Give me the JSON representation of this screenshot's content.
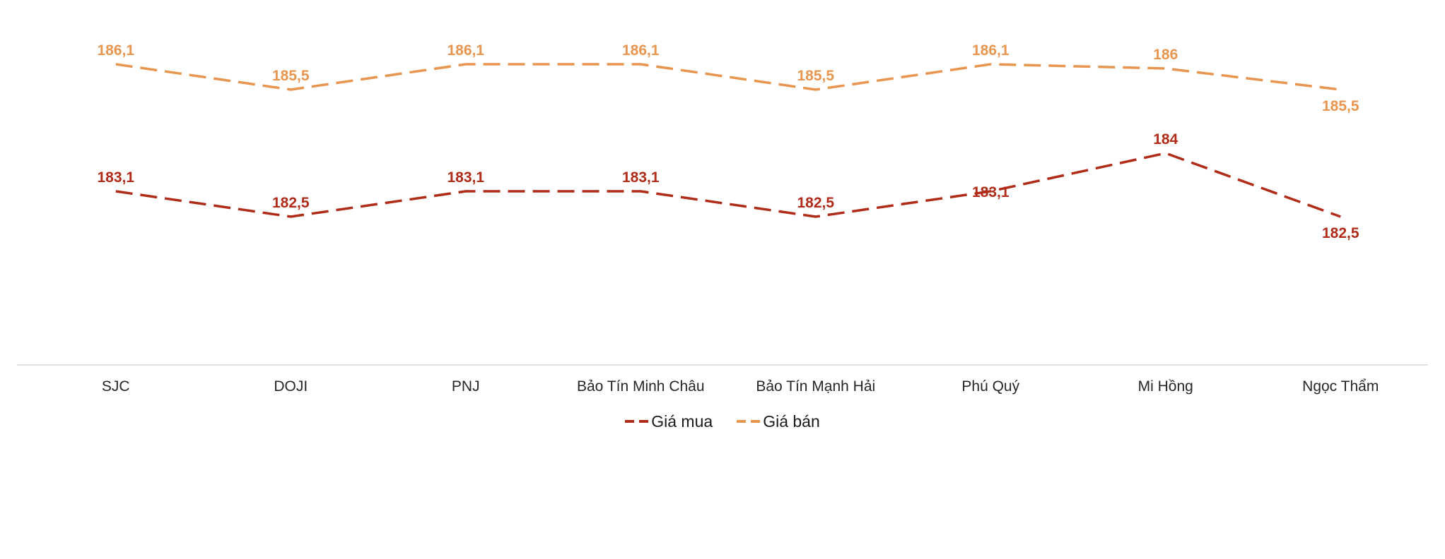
{
  "colors": {
    "background": "#FFFFFF",
    "buy_series": "#B02B18",
    "sell_series": "#E8954F",
    "axis_line": "#D9D9D9",
    "category_text": "#262626",
    "legend_text": "#1A1A1A"
  },
  "chart_data": {
    "type": "line",
    "categories": [
      "SJC",
      "DOJI",
      "PNJ",
      "Bảo Tín Minh Châu",
      "Bảo Tín Mạnh Hải",
      "Phú Quý",
      "Mi Hồng",
      "Ngọc Thẩm"
    ],
    "series": [
      {
        "name": "Giá mua",
        "color": "#B02B18",
        "values": [
          183.1,
          182.5,
          183.1,
          183.1,
          182.5,
          183.1,
          184,
          182.5
        ],
        "labels": [
          "183,1",
          "182,5",
          "183,1",
          "183,1",
          "182,5",
          "183,1",
          "184",
          "182,5"
        ],
        "label_pos": [
          "above",
          "above",
          "above",
          "above",
          "above",
          "center",
          "above",
          "below"
        ]
      },
      {
        "name": "Giá bán",
        "color": "#E8954F",
        "values": [
          186.1,
          185.5,
          186.1,
          186.1,
          185.5,
          186.1,
          186,
          185.5
        ],
        "labels": [
          "186,1",
          "185,5",
          "186,1",
          "186,1",
          "185,5",
          "186,1",
          "186",
          "185,5"
        ],
        "label_pos": [
          "above",
          "above",
          "above",
          "above",
          "above",
          "above",
          "above",
          "below"
        ]
      }
    ],
    "ylim": [
      179,
      187
    ],
    "grid": false,
    "line_style": "dashed",
    "legend_position": "bottom",
    "title": "",
    "xlabel": "",
    "ylabel": ""
  }
}
